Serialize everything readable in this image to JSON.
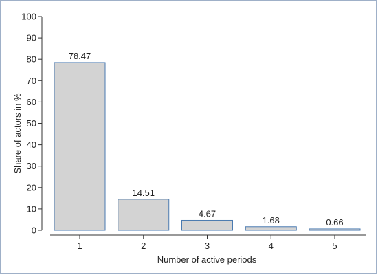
{
  "chart_data": {
    "type": "bar",
    "categories": [
      "1",
      "2",
      "3",
      "4",
      "5"
    ],
    "values": [
      78.47,
      14.51,
      4.67,
      1.68,
      0.66
    ],
    "data_labels": [
      "78.47",
      "14.51",
      "4.67",
      "1.68",
      "0.66"
    ],
    "xlabel": "Number of active periods",
    "ylabel": "Share of actors in %",
    "ylim": [
      0,
      100
    ],
    "yticks": [
      "0",
      "10",
      "20",
      "30",
      "40",
      "50",
      "60",
      "70",
      "80",
      "90",
      "100"
    ],
    "grid": false,
    "legend": "none",
    "colors": {
      "bar_fill": "#d3d3d3",
      "bar_stroke": "#4a7ab0",
      "axis": "#333333",
      "frame": "#9fb0c8"
    }
  }
}
